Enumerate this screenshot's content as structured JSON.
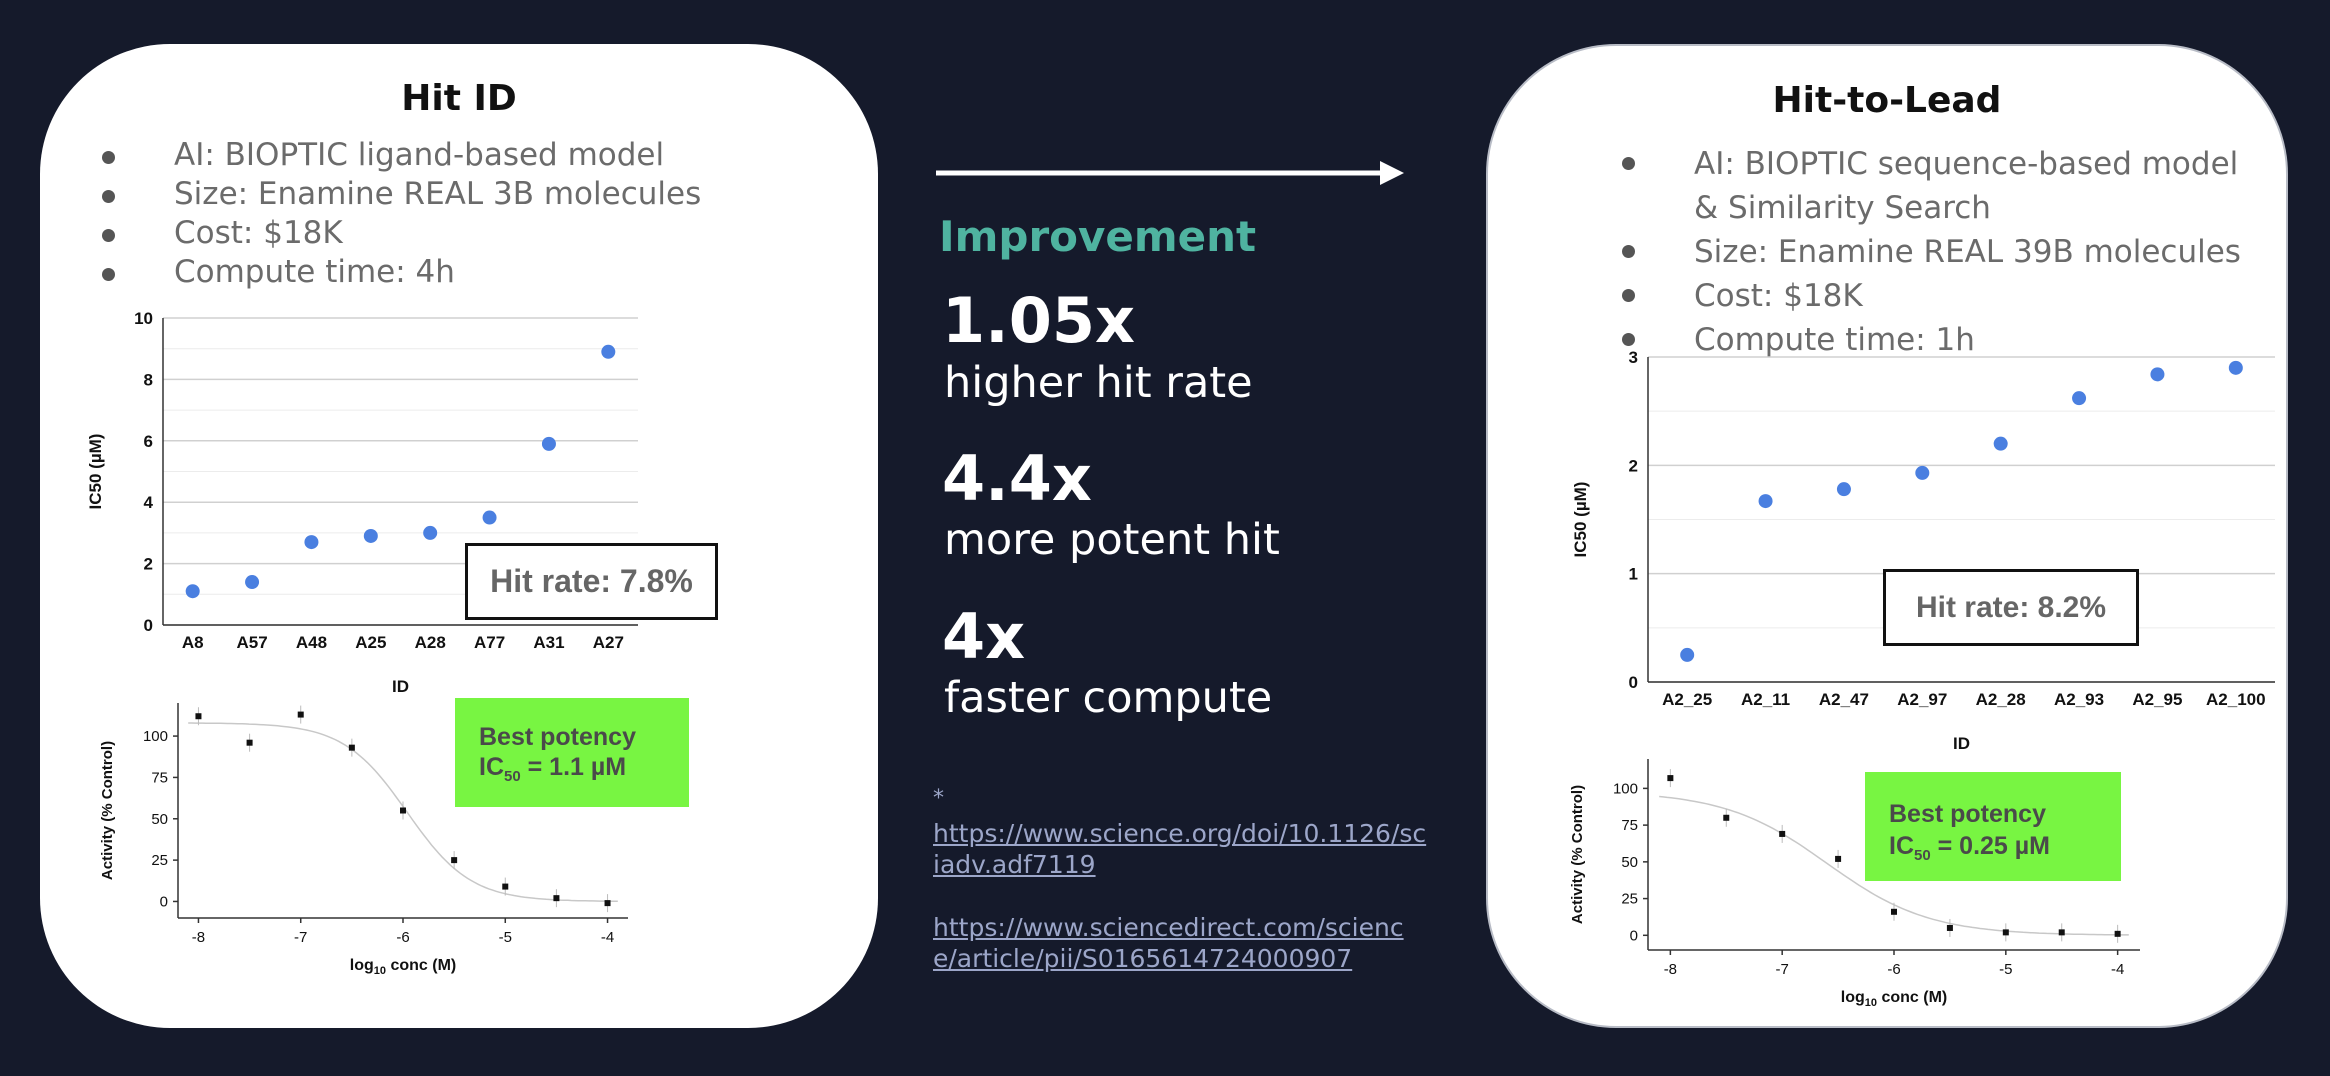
{
  "left": {
    "title": "Hit ID",
    "bullets": [
      "AI: BIOPTIC ligand-based model",
      "Size: Enamine REAL 3B molecules",
      "Cost: $18K",
      "Compute time: 4h"
    ],
    "hit_rate": "Hit rate: 7.8%",
    "potency_line1": "Best potency",
    "potency_ic": "IC",
    "potency_sub": "50",
    "potency_value": " = 1.1 µM"
  },
  "right": {
    "title": "Hit-to-Lead",
    "bullets": [
      "AI: BIOPTIC sequence-based model & Similarity Search",
      "Size: Enamine REAL 39B molecules",
      "Cost: $18K",
      "Compute time: 1h"
    ],
    "hit_rate": "Hit rate: 8.2%",
    "potency_line1": "Best potency",
    "potency_ic": "IC",
    "potency_sub": "50",
    "potency_value": " = 0.25 µM"
  },
  "middle": {
    "heading": "Improvement",
    "stats": [
      {
        "value": "1.05x",
        "label": "higher hit rate"
      },
      {
        "value": "4.4x",
        "label": "more potent hit"
      },
      {
        "value": "4x",
        "label": "faster compute"
      }
    ],
    "footnote_marker": "*",
    "links": [
      [
        "https://www.science.org/doi/10.1126/sc",
        "iadv.adf7119"
      ],
      [
        "https://www.sciencedirect.com/scienc",
        "e/article/pii/S0165614724000907"
      ]
    ]
  },
  "colors": {
    "background": "#151a2b",
    "accent": "#4fb3a0",
    "point": "#4a7fe0",
    "potency_box": "#78f542"
  },
  "chart_data": [
    {
      "type": "scatter",
      "xlabel": "ID",
      "ylabel": "IC50 (µM)",
      "categories": [
        "A8",
        "A57",
        "A48",
        "A25",
        "A28",
        "A77",
        "A31",
        "A27"
      ],
      "values": [
        1.1,
        1.4,
        2.7,
        2.9,
        3.0,
        3.5,
        5.9,
        8.9
      ],
      "ylim": [
        0,
        10
      ],
      "yticks": [
        0,
        2,
        4,
        6,
        8,
        10
      ],
      "grid": true
    },
    {
      "type": "line",
      "xlabel": "log10 conc (M)",
      "ylabel": "Activity (% Control)",
      "x": [
        -8,
        -7.5,
        -7,
        -6.5,
        -6,
        -5.5,
        -5,
        -4.5,
        -4
      ],
      "values": [
        112,
        96,
        113,
        93,
        55,
        25,
        9,
        2,
        -1
      ],
      "xlim": [
        -8.2,
        -3.8
      ],
      "ylim": [
        -10,
        120
      ],
      "xticks": [
        -8,
        -7,
        -6,
        -5,
        -4
      ],
      "yticks": [
        0,
        25,
        50,
        75,
        100
      ],
      "fit": {
        "top": 108,
        "bottom": 0,
        "log_ic50": -5.96,
        "hill": 1.4
      }
    },
    {
      "type": "scatter",
      "xlabel": "ID",
      "ylabel": "IC50 (µM)",
      "categories": [
        "A2_25",
        "A2_11",
        "A2_47",
        "A2_97",
        "A2_28",
        "A2_93",
        "A2_95",
        "A2_100"
      ],
      "values": [
        0.25,
        1.67,
        1.78,
        1.93,
        2.2,
        2.62,
        2.84,
        2.9
      ],
      "ylim": [
        0,
        3
      ],
      "yticks": [
        0,
        1,
        2,
        3
      ],
      "grid": true
    },
    {
      "type": "line",
      "xlabel": "log10 conc (M)",
      "ylabel": "Activity (% Control)",
      "x": [
        -8,
        -7.5,
        -7,
        -6.5,
        -6,
        -5.5,
        -5,
        -4.5,
        -4
      ],
      "values": [
        107,
        80,
        69,
        52,
        16,
        5,
        2,
        2,
        1
      ],
      "xlim": [
        -8.2,
        -3.8
      ],
      "ylim": [
        -10,
        120
      ],
      "xticks": [
        -8,
        -7,
        -6,
        -5,
        -4
      ],
      "yticks": [
        0,
        25,
        50,
        75,
        100
      ],
      "fit": {
        "top": 98,
        "bottom": 0,
        "log_ic50": -6.6,
        "hill": 0.95
      }
    }
  ]
}
